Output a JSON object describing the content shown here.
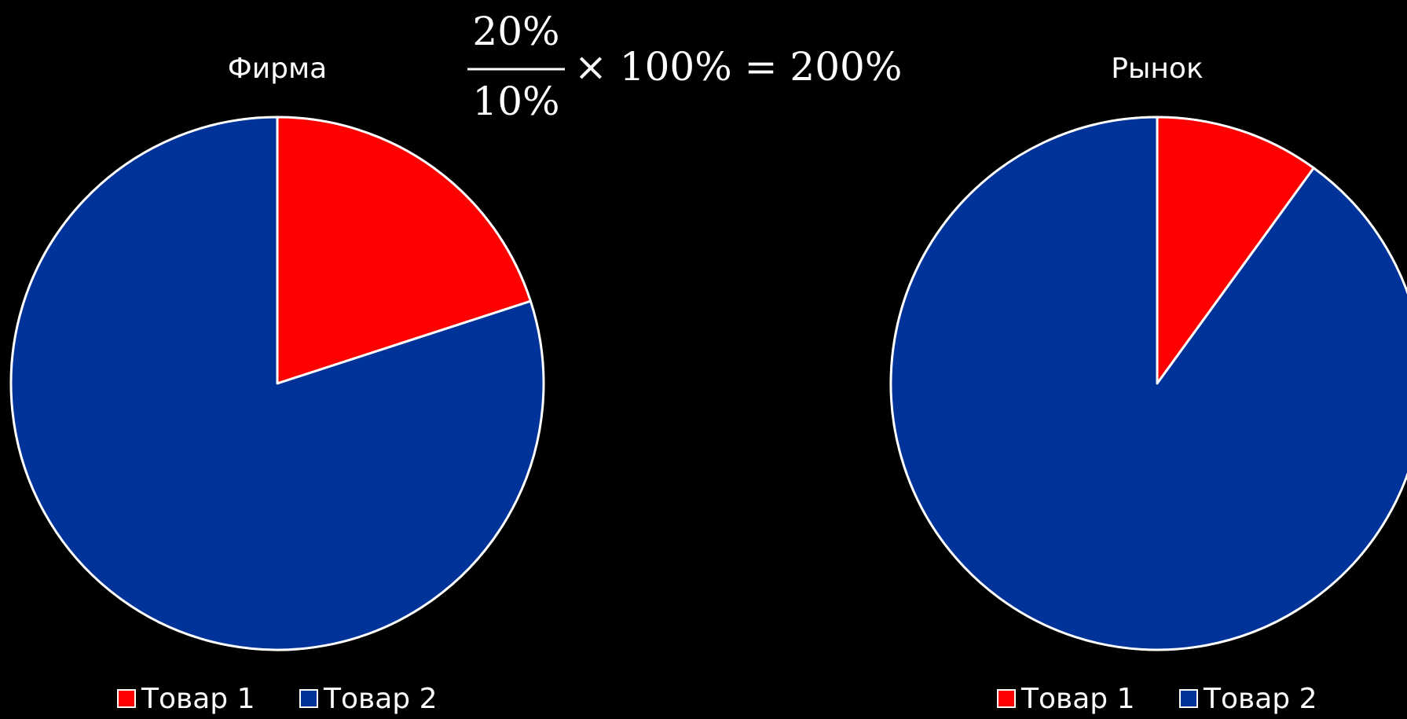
{
  "chart_data": [
    {
      "type": "pie",
      "title": "Фирма",
      "categories": [
        "Товар 1",
        "Товар 2"
      ],
      "values": [
        20,
        80
      ],
      "colors": [
        "#ff0000",
        "#003399"
      ]
    },
    {
      "type": "pie",
      "title": "Рынок",
      "categories": [
        "Товар 1",
        "Товар 2"
      ],
      "values": [
        10,
        90
      ],
      "colors": [
        "#ff0000",
        "#003399"
      ]
    }
  ],
  "formula": {
    "numerator": "20%",
    "denominator": "10%",
    "rest": "× 100% = 200%"
  }
}
